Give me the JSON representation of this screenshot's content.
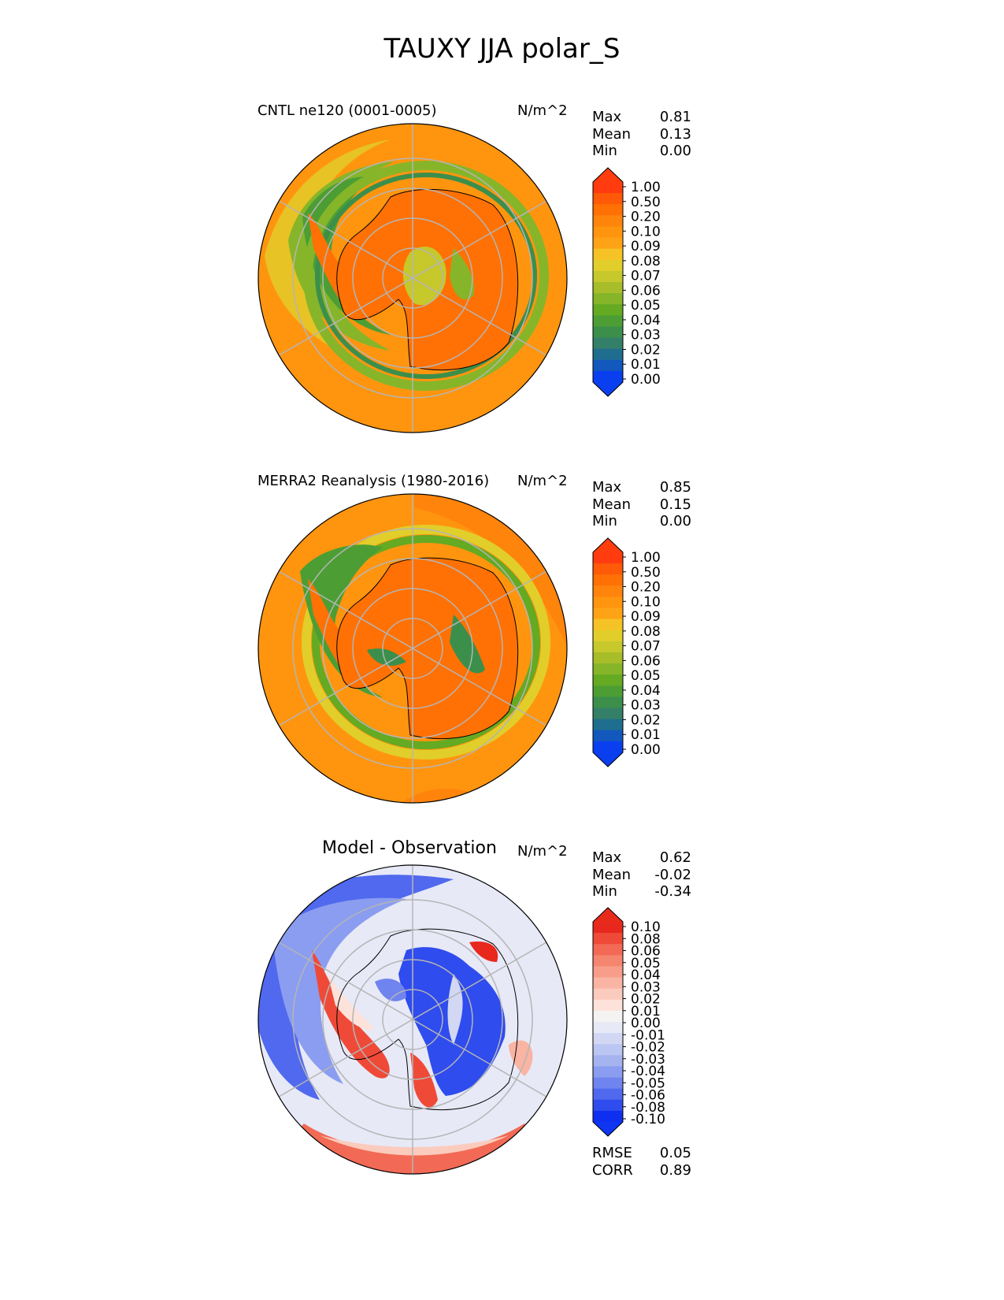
{
  "title": "TAUXY JJA polar_S",
  "panels": [
    {
      "name": "cntl",
      "label": "CNTL ne120 (0001-0005)",
      "units": "N/m^2",
      "stats": [
        {
          "label": "Max",
          "value": "0.81"
        },
        {
          "label": "Mean",
          "value": "0.13"
        },
        {
          "label": "Min",
          "value": "0.00"
        }
      ],
      "colorbar": {
        "ticks": [
          "1.00",
          "0.50",
          "0.20",
          "0.10",
          "0.09",
          "0.08",
          "0.07",
          "0.06",
          "0.05",
          "0.04",
          "0.03",
          "0.02",
          "0.01",
          "0.00"
        ],
        "colors": [
          "#ff3b0f",
          "#ff5a07",
          "#ff7105",
          "#ff840c",
          "#ff950f",
          "#ffa316",
          "#f5c326",
          "#e1ce2a",
          "#c6c82c",
          "#a7bd2a",
          "#86b52a",
          "#64aa22",
          "#4c9e34",
          "#3b8f4b",
          "#347f68",
          "#1f6e8f",
          "#1258bd",
          "#0a3ff0"
        ],
        "top_color": "#ff3d0f",
        "bottom_color": "#0a3ff0"
      }
    },
    {
      "name": "obs",
      "label": "MERRA2 Reanalysis (1980-2016)",
      "units": "N/m^2",
      "stats": [
        {
          "label": "Max",
          "value": "0.85"
        },
        {
          "label": "Mean",
          "value": "0.15"
        },
        {
          "label": "Min",
          "value": "0.00"
        }
      ],
      "colorbar": {
        "ticks": [
          "1.00",
          "0.50",
          "0.20",
          "0.10",
          "0.09",
          "0.08",
          "0.07",
          "0.06",
          "0.05",
          "0.04",
          "0.03",
          "0.02",
          "0.01",
          "0.00"
        ],
        "colors": [
          "#ff3b0f",
          "#ff5a07",
          "#ff7105",
          "#ff840c",
          "#ff950f",
          "#ffa316",
          "#f5c326",
          "#e1ce2a",
          "#c6c82c",
          "#a7bd2a",
          "#86b52a",
          "#64aa22",
          "#4c9e34",
          "#3b8f4b",
          "#347f68",
          "#1f6e8f",
          "#1258bd",
          "#0a3ff0"
        ],
        "top_color": "#ff3d0f",
        "bottom_color": "#0a3ff0"
      }
    },
    {
      "name": "diff",
      "label": "Model - Observation",
      "units": "N/m^2",
      "stats": [
        {
          "label": "Max",
          "value": "0.62"
        },
        {
          "label": "Mean",
          "value": "-0.02"
        },
        {
          "label": "Min",
          "value": "-0.34"
        }
      ],
      "extra_stats": [
        {
          "label": "RMSE",
          "value": "0.05"
        },
        {
          "label": "CORR",
          "value": "0.89"
        }
      ],
      "colorbar": {
        "ticks": [
          "0.10",
          "0.08",
          "0.06",
          "0.05",
          "0.04",
          "0.03",
          "0.02",
          "0.01",
          "0.00",
          "-0.01",
          "-0.02",
          "-0.03",
          "-0.04",
          "-0.05",
          "-0.06",
          "-0.08",
          "-0.10"
        ],
        "colors": [
          "#e8281c",
          "#ef4a38",
          "#f26a55",
          "#f5856f",
          "#f79d89",
          "#f9b4a3",
          "#fbcbbd",
          "#fde2d9",
          "#f5f3f2",
          "#e7e9f7",
          "#d2d8f4",
          "#bcc6f2",
          "#a5b3ef",
          "#8b9df0",
          "#6f84ee",
          "#5069ee",
          "#2f4cee",
          "#0f2ff0"
        ],
        "top_color": "#e82a1b",
        "bottom_color": "#0e35f0"
      }
    }
  ],
  "icon_names": [
    "antarctica-coastline-icon"
  ]
}
